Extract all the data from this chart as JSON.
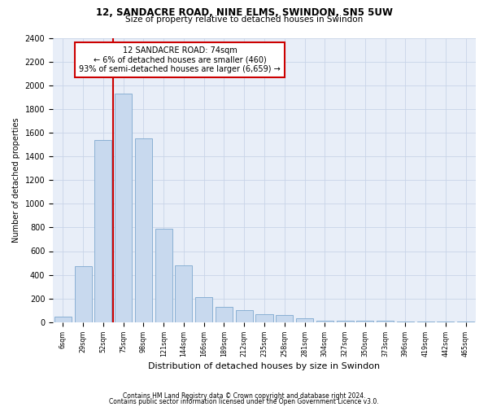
{
  "title1": "12, SANDACRE ROAD, NINE ELMS, SWINDON, SN5 5UW",
  "title2": "Size of property relative to detached houses in Swindon",
  "xlabel": "Distribution of detached houses by size in Swindon",
  "ylabel": "Number of detached properties",
  "footer1": "Contains HM Land Registry data © Crown copyright and database right 2024.",
  "footer2": "Contains public sector information licensed under the Open Government Licence v3.0.",
  "annotation_title": "12 SANDACRE ROAD: 74sqm",
  "annotation_line1": "← 6% of detached houses are smaller (460)",
  "annotation_line2": "93% of semi-detached houses are larger (6,659) →",
  "bar_categories": [
    "6sqm",
    "29sqm",
    "52sqm",
    "75sqm",
    "98sqm",
    "121sqm",
    "144sqm",
    "166sqm",
    "189sqm",
    "212sqm",
    "235sqm",
    "258sqm",
    "281sqm",
    "304sqm",
    "327sqm",
    "350sqm",
    "373sqm",
    "396sqm",
    "419sqm",
    "442sqm",
    "465sqm"
  ],
  "bar_values": [
    50,
    470,
    1540,
    1930,
    1550,
    790,
    480,
    210,
    130,
    100,
    70,
    60,
    30,
    10,
    10,
    10,
    10,
    5,
    5,
    5,
    5
  ],
  "bar_color": "#c8d9ee",
  "bar_edge_color": "#8ab0d4",
  "red_line_color": "#cc0000",
  "grid_color": "#c8d4e8",
  "background_color": "#e8eef8",
  "ylim": [
    0,
    2400
  ],
  "yticks": [
    0,
    200,
    400,
    600,
    800,
    1000,
    1200,
    1400,
    1600,
    1800,
    2000,
    2200,
    2400
  ],
  "red_line_x": 2.5
}
